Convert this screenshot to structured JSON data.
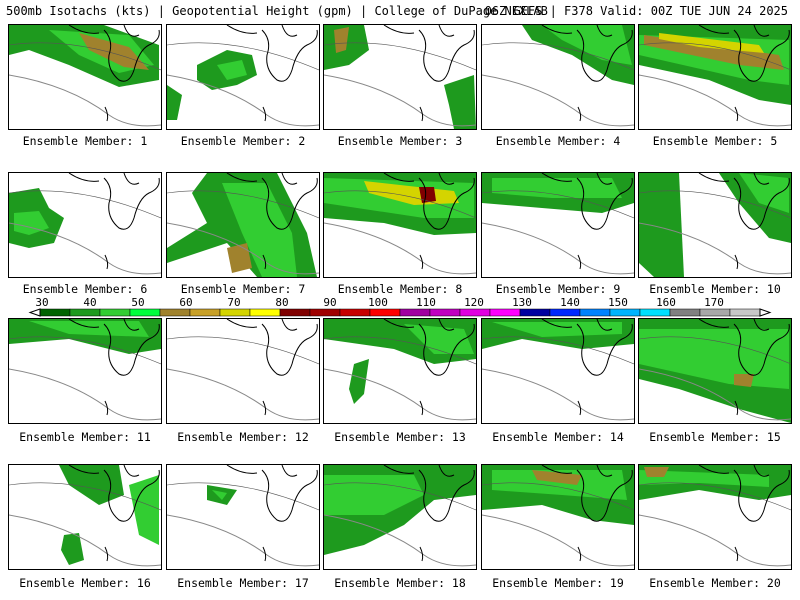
{
  "header": {
    "left": "500mb Isotachs (kts) | Geopotential Height (gpm) | College of DuPage NEXLAB",
    "right": "06Z GEFS | F378 Valid: 00Z TUE JUN 24 2025"
  },
  "colorbar": {
    "labels": [
      "30",
      "40",
      "50",
      "60",
      "70",
      "80",
      "90",
      "100",
      "110",
      "120",
      "130",
      "140",
      "150",
      "160",
      "170"
    ],
    "colors": [
      "#006400",
      "#1e9a1e",
      "#32cd32",
      "#00ff3c",
      "#a0822d",
      "#c8a028",
      "#d4d400",
      "#ffff00",
      "#800000",
      "#a00000",
      "#c80000",
      "#ff0000",
      "#a000a0",
      "#c000c0",
      "#e000e0",
      "#ff00ff",
      "#0000a0",
      "#0028ff",
      "#0082ff",
      "#00b4ff",
      "#00e0ff",
      "#808080",
      "#a8a8a8",
      "#c8c8c8"
    ]
  },
  "caption_prefix": "Ensemble Member:",
  "members": [
    {
      "id": "1",
      "caption": "Ensemble Member: 1"
    },
    {
      "id": "2",
      "caption": "Ensemble Member: 2"
    },
    {
      "id": "3",
      "caption": "Ensemble Member: 3"
    },
    {
      "id": "4",
      "caption": "Ensemble Member: 4"
    },
    {
      "id": "5",
      "caption": "Ensemble Member: 5"
    },
    {
      "id": "6",
      "caption": "Ensemble Member: 6"
    },
    {
      "id": "7",
      "caption": "Ensemble Member: 7"
    },
    {
      "id": "8",
      "caption": "Ensemble Member: 8"
    },
    {
      "id": "9",
      "caption": "Ensemble Member: 9"
    },
    {
      "id": "10",
      "caption": "Ensemble Member: 10"
    },
    {
      "id": "11",
      "caption": "Ensemble Member: 11"
    },
    {
      "id": "12",
      "caption": "Ensemble Member: 12"
    },
    {
      "id": "13",
      "caption": "Ensemble Member: 13"
    },
    {
      "id": "14",
      "caption": "Ensemble Member: 14"
    },
    {
      "id": "15",
      "caption": "Ensemble Member: 15"
    },
    {
      "id": "16",
      "caption": "Ensemble Member: 16"
    },
    {
      "id": "17",
      "caption": "Ensemble Member: 17"
    },
    {
      "id": "18",
      "caption": "Ensemble Member: 18"
    },
    {
      "id": "19",
      "caption": "Ensemble Member: 19"
    },
    {
      "id": "20",
      "caption": "Ensemble Member: 20"
    }
  ]
}
